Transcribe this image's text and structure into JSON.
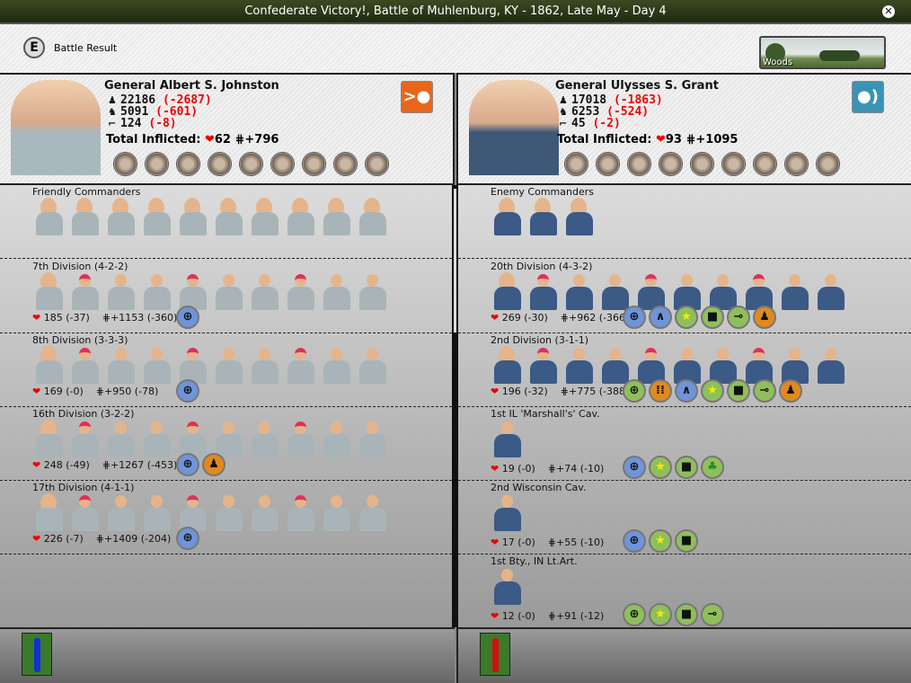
{
  "window": {
    "title": "Confederate Victory!, Battle of Muhlenburg, KY - 1862, Late May - Day 4",
    "close_icon": "close-icon"
  },
  "header": {
    "hotkey": "E",
    "label": "Battle Result",
    "terrain": "Woods"
  },
  "left": {
    "general": "General Albert S. Johnston",
    "side_color": "#a9b8bd",
    "infantry": "22186",
    "infantry_loss": "(-2687)",
    "cavalry": "5091",
    "cavalry_loss": "(-601)",
    "artillery": "124",
    "artillery_loss": "(-8)",
    "inflicted_label": "Total Inflicted:",
    "inflicted_hits": "62",
    "inflicted_men": "+796",
    "action_icon": "attack-icon",
    "action_color": "#e8661c",
    "action_glyph": ">●",
    "commanders_label": "Friendly Commanders",
    "commander_count": 10,
    "divisions": [
      {
        "name": "7th Division (4-2-2)",
        "units": 10,
        "hits": "185 (-37)",
        "men": "+1153 (-360)",
        "badges": [
          "target-blue"
        ]
      },
      {
        "name": "8th Division (3-3-3)",
        "units": 10,
        "hits": "169 (-0)",
        "men": "+950 (-78)",
        "badges": [
          "target-blue"
        ]
      },
      {
        "name": "16th Division (3-2-2)",
        "units": 10,
        "hits": "248 (-49)",
        "men": "+1267 (-453)",
        "badges": [
          "target-blue",
          "infantry-orange"
        ]
      },
      {
        "name": "17th Division (4-1-1)",
        "units": 10,
        "hits": "226 (-7)",
        "men": "+1409 (-204)",
        "badges": [
          "target-blue"
        ]
      }
    ]
  },
  "right": {
    "general": "General Ulysses S. Grant",
    "side_color": "#3f5878",
    "infantry": "17018",
    "infantry_loss": "(-1863)",
    "cavalry": "6253",
    "cavalry_loss": "(-524)",
    "artillery": "45",
    "artillery_loss": "(-2)",
    "inflicted_label": "Total Inflicted:",
    "inflicted_hits": "93",
    "inflicted_men": "+1095",
    "action_icon": "defend-icon",
    "action_color": "#3a93b5",
    "action_glyph": "●)",
    "commanders_label": "Enemy Commanders",
    "commander_count": 3,
    "divisions": [
      {
        "name": "20th Division (4-3-2)",
        "units": 10,
        "hits": "269 (-30)",
        "men": "+962 (-366)",
        "badges": [
          "target-blue",
          "wave-blue",
          "star-green",
          "crate-green",
          "cannon-green",
          "infantry-orange"
        ]
      },
      {
        "name": "2nd Division (3-1-1)",
        "units": 10,
        "hits": "196 (-32)",
        "men": "+775 (-388)",
        "badges": [
          "target-green",
          "grid-orange",
          "wave-blue",
          "star-green",
          "crate-green",
          "cannon-green",
          "infantry-orange"
        ]
      },
      {
        "name": "1st IL 'Marshall's' Cav.",
        "units": 1,
        "hits": "19 (-0)",
        "men": "+74 (-10)",
        "badges": [
          "target-blue",
          "star-green",
          "crate-green",
          "clover-green"
        ]
      },
      {
        "name": "2nd Wisconsin Cav.",
        "units": 1,
        "hits": "17 (-0)",
        "men": "+55 (-10)",
        "badges": [
          "target-blue",
          "star-green",
          "crate-green"
        ]
      },
      {
        "name": "1st Bty., IN Lt.Art.",
        "units": 1,
        "hits": "12 (-0)",
        "men": "+91 (-12)",
        "badges": [
          "target-green",
          "star-green",
          "crate-green",
          "cannon-green"
        ]
      }
    ]
  },
  "footer": {
    "left_flag_color": "#1030d0",
    "right_flag_color": "#d01010"
  }
}
